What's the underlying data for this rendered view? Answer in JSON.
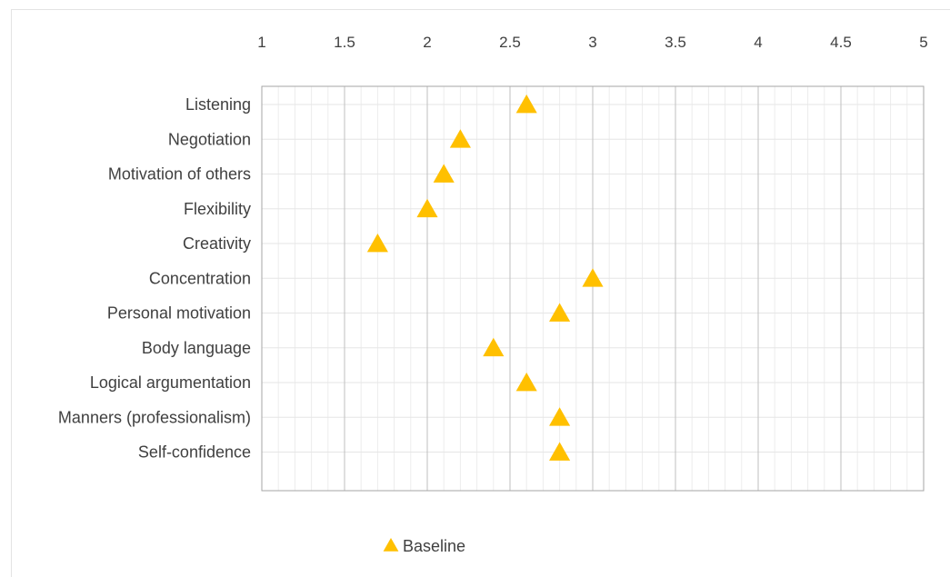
{
  "chart_data": {
    "type": "scatter",
    "title": "",
    "xlabel": "",
    "ylabel": "",
    "xlim": [
      1,
      5
    ],
    "x_ticks": [
      "1",
      "1.5",
      "2",
      "2.5",
      "3",
      "3.5",
      "4",
      "4.5",
      "5"
    ],
    "x_tick_values": [
      1,
      1.5,
      2,
      2.5,
      3,
      3.5,
      4,
      4.5,
      5
    ],
    "x_axis_position": "top",
    "grid": true,
    "legend_position": "bottom",
    "categories": [
      "Listening",
      "Negotiation",
      "Motivation of others",
      "Flexibility",
      "Creativity",
      "Concentration",
      "Personal motivation",
      "Body language",
      "Logical argumentation",
      "Manners (professionalism)",
      "Self-confidence"
    ],
    "series": [
      {
        "name": "Baseline",
        "marker": "triangle",
        "color": "#FFC000",
        "values": [
          2.6,
          2.2,
          2.1,
          2.0,
          1.7,
          3.0,
          2.8,
          2.4,
          2.6,
          2.8,
          2.8
        ]
      }
    ]
  }
}
